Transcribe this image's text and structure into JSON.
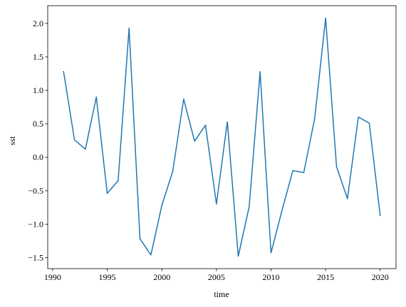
{
  "chart_data": {
    "type": "line",
    "title": "",
    "xlabel": "time",
    "ylabel": "sst",
    "xlim": [
      1989.55,
      2021.45
    ],
    "ylim": [
      -1.665,
      2.265
    ],
    "x_ticks": [
      1990,
      1995,
      2000,
      2005,
      2010,
      2015,
      2020
    ],
    "y_ticks": [
      -1.5,
      -1.0,
      -0.5,
      0.0,
      0.5,
      1.0,
      1.5,
      2.0
    ],
    "grid": false,
    "series": [
      {
        "color": "#1f77b4",
        "x": [
          1991,
          1992,
          1993,
          1994,
          1995,
          1996,
          1997,
          1998,
          1999,
          2000,
          2001,
          2002,
          2003,
          2004,
          2005,
          2006,
          2007,
          2008,
          2009,
          2010,
          2011,
          2012,
          2013,
          2014,
          2015,
          2016,
          2017,
          2018,
          2019,
          2020
        ],
        "y": [
          1.28,
          0.26,
          0.12,
          0.9,
          -0.54,
          -0.35,
          1.93,
          -1.22,
          -1.46,
          -0.72,
          -0.21,
          0.87,
          0.24,
          0.48,
          -0.7,
          0.53,
          -1.48,
          -0.74,
          1.28,
          -1.43,
          -0.8,
          -0.2,
          -0.23,
          0.58,
          2.08,
          -0.14,
          -0.62,
          0.6,
          0.51,
          -0.87
        ]
      }
    ]
  }
}
